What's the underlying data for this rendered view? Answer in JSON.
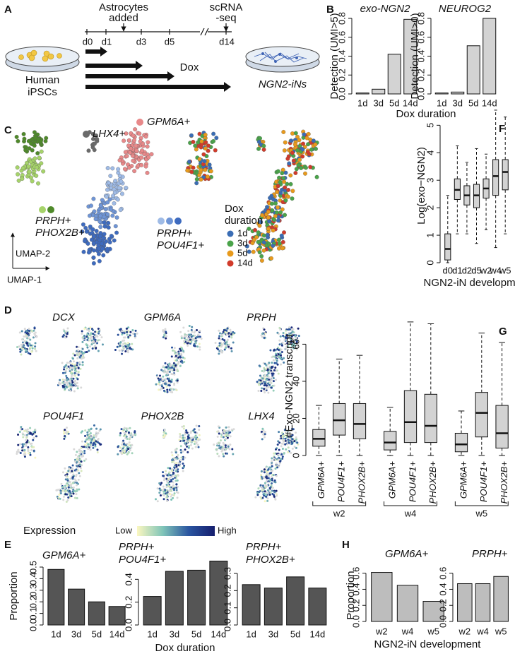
{
  "panel_labels": [
    "A",
    "B",
    "C",
    "D",
    "E",
    "F",
    "G",
    "H"
  ],
  "diagram": {
    "event_1": [
      "Astrocytes",
      "added"
    ],
    "event_2": [
      "scRNA",
      "-seq"
    ],
    "days": [
      "d0",
      "d1",
      "d3",
      "d5",
      "d14"
    ],
    "treatment": "Dox",
    "start": [
      "Human",
      "iPSCs"
    ],
    "end": "NGN2-iNs"
  },
  "umap": {
    "clusters": [
      {
        "label": [
          "GPM6A+"
        ],
        "colors": [
          "#e8898a"
        ]
      },
      {
        "label": [
          "LHX4+"
        ],
        "colors": [
          "#6b6b6b"
        ]
      },
      {
        "label": [
          "PRPH+",
          "PHOX2B+"
        ],
        "colors": [
          "#a6d36a",
          "#4f8a2a"
        ]
      },
      {
        "label": [
          "PRPH+",
          "POU4F1+"
        ],
        "colors": [
          "#9fbbe6",
          "#6f95d6",
          "#3e6bbf"
        ]
      }
    ],
    "axis_y": "UMAP-2",
    "axis_x": "UMAP-1",
    "legend_title": [
      "Dox",
      "duration"
    ],
    "legend": [
      {
        "name": "1d",
        "color": "#3a6db5"
      },
      {
        "name": "3d",
        "color": "#4aa34a"
      },
      {
        "name": "5d",
        "color": "#e89a1c"
      },
      {
        "name": "14d",
        "color": "#d13b2b"
      }
    ]
  },
  "expression": {
    "genes": [
      "DCX",
      "GPM6A",
      "PRPH",
      "POU4F1",
      "PHOX2B",
      "LHX4"
    ],
    "legend_title": "Expression",
    "low": "Low",
    "high": "High",
    "colors": [
      "#fbf7c0",
      "#7fc4b8",
      "#2a55a0",
      "#151e6e"
    ],
    "zero_color": "#d9d9d9"
  },
  "chart_data": [
    {
      "type": "bar",
      "title": [
        "exo-NGN2"
      ],
      "y_label": "Detection (UMI>5)",
      "categories": [
        "1d",
        "3d",
        "5d",
        "14d"
      ],
      "values": [
        0.01,
        0.05,
        0.42,
        0.79
      ],
      "color": "#d3d3d3",
      "ylim": [
        0,
        0.8
      ],
      "yticks": [
        {
          "value": 0,
          "label": "0.0"
        },
        0.2,
        0.4,
        0.6,
        0.8
      ]
    },
    {
      "type": "bar",
      "title": [
        "NEUROG2"
      ],
      "y_label": "Detection (UMI>0)",
      "x_label": "Dox duration",
      "categories": [
        "1d",
        "3d",
        "5d",
        "14d"
      ],
      "values": [
        0.01,
        0.02,
        0.51,
        0.8
      ],
      "color": "#d3d3d3",
      "ylim": [
        0,
        0.8
      ],
      "yticks": [
        {
          "value": 0,
          "label": "0.0"
        },
        0.2,
        0.4,
        0.6,
        0.8
      ]
    },
    {
      "type": "box",
      "y_label": "Log(exo−NGN2)",
      "x_label": "NGN2-iN development",
      "categories": [
        "d0",
        "d1",
        "d2",
        "d5",
        "w2",
        "w4",
        "w5"
      ],
      "min": [
        0,
        1.05,
        1.05,
        0.7,
        1.2,
        0.55,
        1.05
      ],
      "q1": [
        0.1,
        2.3,
        2.1,
        2.0,
        2.35,
        2.45,
        2.65
      ],
      "median": [
        0.5,
        2.65,
        2.45,
        2.45,
        2.7,
        3.15,
        3.3
      ],
      "q3": [
        1.05,
        3.05,
        2.8,
        2.85,
        3.05,
        3.75,
        3.75
      ],
      "max": [
        2.45,
        4.25,
        3.65,
        4.15,
        3.95,
        5.55,
        5.3
      ],
      "color": "#d3d3d3",
      "ylim": [
        0,
        5.6
      ],
      "yticks": [
        0,
        1,
        2,
        3,
        4,
        5
      ]
    },
    {
      "type": "box",
      "y_label": "#Exo-NGN2 transcript",
      "categories": [
        "GPM6A+",
        "POU4F1+",
        "PHOX2B+",
        "GPM6A+",
        "POU4F1+",
        "PHOX2B+",
        "GPM6A+",
        "POU4F1+",
        "PHOX2B+"
      ],
      "groups": [
        "w2",
        "w4",
        "w5"
      ],
      "min": [
        0,
        0,
        0,
        0,
        0,
        0,
        0,
        0,
        0
      ],
      "q1": [
        5,
        11,
        9,
        3,
        7,
        7,
        2,
        10,
        4
      ],
      "median": [
        9,
        19,
        17,
        7,
        18,
        16,
        6,
        23,
        12
      ],
      "q3": [
        14,
        28,
        28,
        13,
        35,
        33,
        12,
        34,
        27
      ],
      "max": [
        27,
        52,
        54,
        26,
        72,
        71,
        24,
        66,
        61
      ],
      "color": "#d3d3d3",
      "ylim": [
        0,
        75
      ],
      "yticks": [
        0,
        20,
        40,
        60
      ]
    },
    {
      "type": "bar",
      "title": [
        "GPM6A+"
      ],
      "y_label": "Proportion",
      "categories": [
        "1d",
        "3d",
        "5d",
        "14d"
      ],
      "values": [
        0.48,
        0.31,
        0.2,
        0.16
      ],
      "color": "#555555",
      "ylim": [
        0,
        0.5
      ],
      "yticks": [
        {
          "value": 0,
          "label": "0.0"
        },
        0.1,
        0.2,
        0.3,
        0.4,
        0.5
      ]
    },
    {
      "type": "bar",
      "title": [
        "PRPH+",
        "POU4F1+"
      ],
      "x_label": "Dox duration",
      "categories": [
        "1d",
        "3d",
        "5d",
        "14d"
      ],
      "values": [
        0.25,
        0.47,
        0.48,
        0.56
      ],
      "color": "#555555",
      "ylim": [
        0,
        0.6
      ],
      "yticks": [
        {
          "value": 0,
          "label": "0.0"
        },
        0.2,
        0.4
      ]
    },
    {
      "type": "bar",
      "title": [
        "PRPH+",
        "PHOX2B+"
      ],
      "categories": [
        "1d",
        "3d",
        "5d",
        "14d"
      ],
      "values": [
        0.235,
        0.215,
        0.28,
        0.215
      ],
      "color": "#555555",
      "ylim": [
        0,
        0.3
      ],
      "yticks": [
        {
          "value": 0,
          "label": "0.0"
        },
        0.1,
        0.2,
        0.3
      ]
    },
    {
      "type": "bar",
      "title": [
        "GPM6A+"
      ],
      "y_label": "Proportion",
      "x_label": "NGN2-iN development",
      "categories": [
        "w2",
        "w4",
        "w5"
      ],
      "values": [
        0.61,
        0.45,
        0.25
      ],
      "color": "#bdbdbd",
      "ylim": [
        0,
        0.65
      ],
      "yticks": [
        {
          "value": 0,
          "label": "0.0"
        },
        0.2,
        0.4,
        0.6
      ]
    },
    {
      "type": "bar",
      "title": [
        "PRPH+"
      ],
      "categories": [
        "w2",
        "w4",
        "w5"
      ],
      "values": [
        0.47,
        0.47,
        0.56
      ],
      "color": "#bdbdbd",
      "ylim": [
        0,
        0.65
      ],
      "yticks": [
        {
          "value": 0,
          "label": "0.0"
        },
        0.2,
        0.4,
        0.6
      ]
    }
  ]
}
